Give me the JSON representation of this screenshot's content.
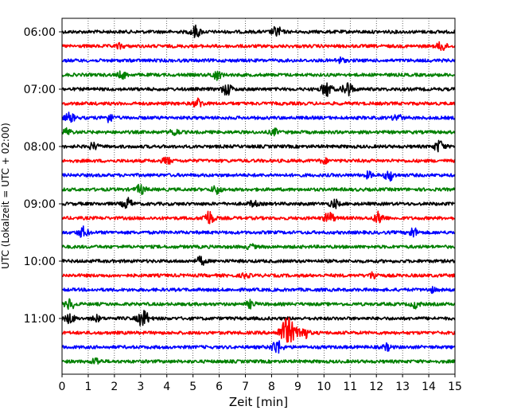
{
  "chart_data": {
    "type": "line",
    "title": "",
    "xlabel": "Zeit  [min]",
    "ylabel": "UTC (Lokalzeit = UTC + 02:00)",
    "xlim": [
      0,
      15
    ],
    "x_ticks": [
      0,
      1,
      2,
      3,
      4,
      5,
      6,
      7,
      8,
      9,
      10,
      11,
      12,
      13,
      14,
      15
    ],
    "x_tick_labels": [
      "0",
      "1",
      "2",
      "3",
      "4",
      "5",
      "6",
      "7",
      "8",
      "9",
      "10",
      "11",
      "12",
      "13",
      "14",
      "15"
    ],
    "y_tick_labels": [
      "06:00",
      "07:00",
      "08:00",
      "09:00",
      "10:00",
      "11:00"
    ],
    "y_tick_traces": [
      0,
      4,
      8,
      12,
      16,
      20
    ],
    "trace_interval_minutes": 15,
    "grid": "vertical dotted at each minute",
    "color_cycle": [
      "#000000",
      "#ff0000",
      "#0000ff",
      "#008000"
    ],
    "series": [
      {
        "start": "06:00",
        "events": [
          {
            "t": 5.1,
            "amp": 1.0
          },
          {
            "t": 8.2,
            "amp": 0.9
          }
        ]
      },
      {
        "start": "06:15",
        "events": [
          {
            "t": 14.5,
            "amp": 0.8
          },
          {
            "t": 2.2,
            "amp": 0.4
          }
        ]
      },
      {
        "start": "06:30",
        "events": [
          {
            "t": 10.6,
            "amp": 0.5
          }
        ]
      },
      {
        "start": "06:45",
        "events": [
          {
            "t": 2.3,
            "amp": 0.6
          },
          {
            "t": 5.9,
            "amp": 0.8
          }
        ]
      },
      {
        "start": "07:00",
        "events": [
          {
            "t": 6.3,
            "amp": 1.0
          },
          {
            "t": 10.1,
            "amp": 1.2
          },
          {
            "t": 10.9,
            "amp": 1.2
          }
        ]
      },
      {
        "start": "07:15",
        "events": [
          {
            "t": 5.2,
            "amp": 0.8
          }
        ]
      },
      {
        "start": "07:30",
        "events": [
          {
            "t": 0.3,
            "amp": 0.8
          },
          {
            "t": 1.8,
            "amp": 0.7
          },
          {
            "t": 12.8,
            "amp": 0.6
          }
        ]
      },
      {
        "start": "07:45",
        "events": [
          {
            "t": 0.2,
            "amp": 0.6
          },
          {
            "t": 8.1,
            "amp": 0.5
          },
          {
            "t": 4.3,
            "amp": 0.6
          }
        ]
      },
      {
        "start": "08:00",
        "events": [
          {
            "t": 1.2,
            "amp": 0.6
          },
          {
            "t": 14.4,
            "amp": 1.0
          }
        ]
      },
      {
        "start": "08:15",
        "events": [
          {
            "t": 4.0,
            "amp": 0.6
          },
          {
            "t": 10.0,
            "amp": 0.4
          }
        ]
      },
      {
        "start": "08:30",
        "events": [
          {
            "t": 12.5,
            "amp": 0.9
          },
          {
            "t": 11.7,
            "amp": 0.5
          }
        ]
      },
      {
        "start": "08:45",
        "events": [
          {
            "t": 3.0,
            "amp": 0.8
          },
          {
            "t": 5.9,
            "amp": 0.7
          }
        ]
      },
      {
        "start": "09:00",
        "events": [
          {
            "t": 2.5,
            "amp": 0.9
          },
          {
            "t": 7.3,
            "amp": 0.5
          },
          {
            "t": 10.4,
            "amp": 0.7
          }
        ]
      },
      {
        "start": "09:15",
        "events": [
          {
            "t": 5.6,
            "amp": 1.2
          },
          {
            "t": 10.2,
            "amp": 1.0
          },
          {
            "t": 12.1,
            "amp": 1.0
          }
        ]
      },
      {
        "start": "09:30",
        "events": [
          {
            "t": 0.8,
            "amp": 0.9
          },
          {
            "t": 13.4,
            "amp": 0.8
          }
        ]
      },
      {
        "start": "09:45",
        "events": [
          {
            "t": 7.2,
            "amp": 0.4
          }
        ]
      },
      {
        "start": "10:00",
        "events": [
          {
            "t": 5.3,
            "amp": 0.7
          }
        ]
      },
      {
        "start": "10:15",
        "events": [
          {
            "t": 11.9,
            "amp": 0.6
          },
          {
            "t": 7.0,
            "amp": 0.4
          }
        ]
      },
      {
        "start": "10:30",
        "events": [
          {
            "t": 14.1,
            "amp": 0.4
          }
        ]
      },
      {
        "start": "10:45",
        "events": [
          {
            "t": 0.3,
            "amp": 0.9
          },
          {
            "t": 7.2,
            "amp": 0.6
          },
          {
            "t": 13.5,
            "amp": 0.6
          }
        ]
      },
      {
        "start": "11:00",
        "events": [
          {
            "t": 0.3,
            "amp": 0.8
          },
          {
            "t": 3.1,
            "amp": 1.4
          },
          {
            "t": 1.3,
            "amp": 0.5
          }
        ]
      },
      {
        "start": "11:15",
        "events": [
          {
            "t": 8.6,
            "amp": 2.6
          },
          {
            "t": 9.2,
            "amp": 1.2
          }
        ]
      },
      {
        "start": "11:30",
        "events": [
          {
            "t": 8.2,
            "amp": 1.2
          },
          {
            "t": 12.4,
            "amp": 0.5
          }
        ]
      },
      {
        "start": "11:45",
        "events": [
          {
            "t": 1.3,
            "amp": 0.6
          }
        ]
      }
    ]
  }
}
